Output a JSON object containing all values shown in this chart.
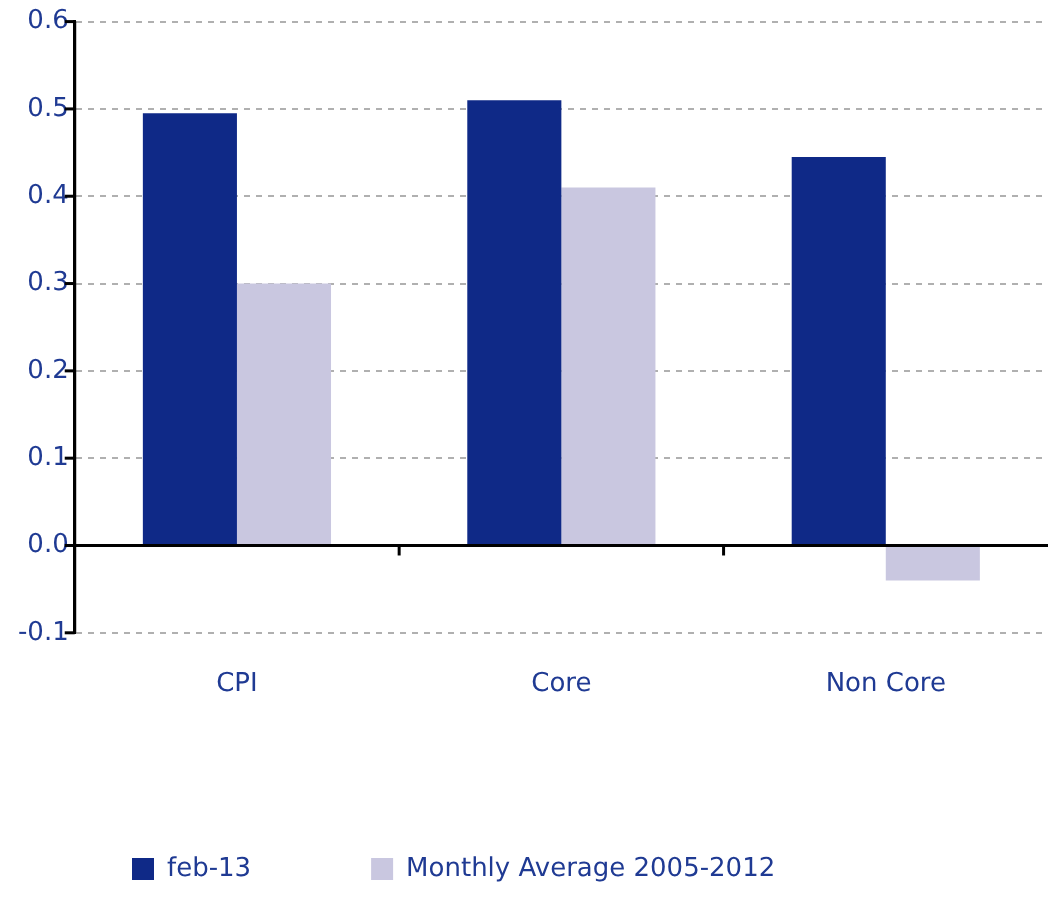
{
  "chart_data": {
    "type": "bar",
    "categories": [
      "CPI",
      "Core",
      "Non Core"
    ],
    "series": [
      {
        "name": "feb-13",
        "color": "#0f2987",
        "values": [
          0.495,
          0.51,
          0.445
        ]
      },
      {
        "name": "Monthly Average 2005-2012",
        "color": "#c9c7e0",
        "values": [
          0.3,
          0.41,
          -0.04
        ]
      }
    ],
    "ylim": [
      -0.1,
      0.6
    ],
    "yticks": [
      -0.1,
      {
        "value": 0,
        "label": "0.0"
      },
      0.1,
      0.2,
      0.3,
      0.4,
      0.5,
      0.6
    ],
    "grid": "y",
    "legend": "bottom"
  }
}
